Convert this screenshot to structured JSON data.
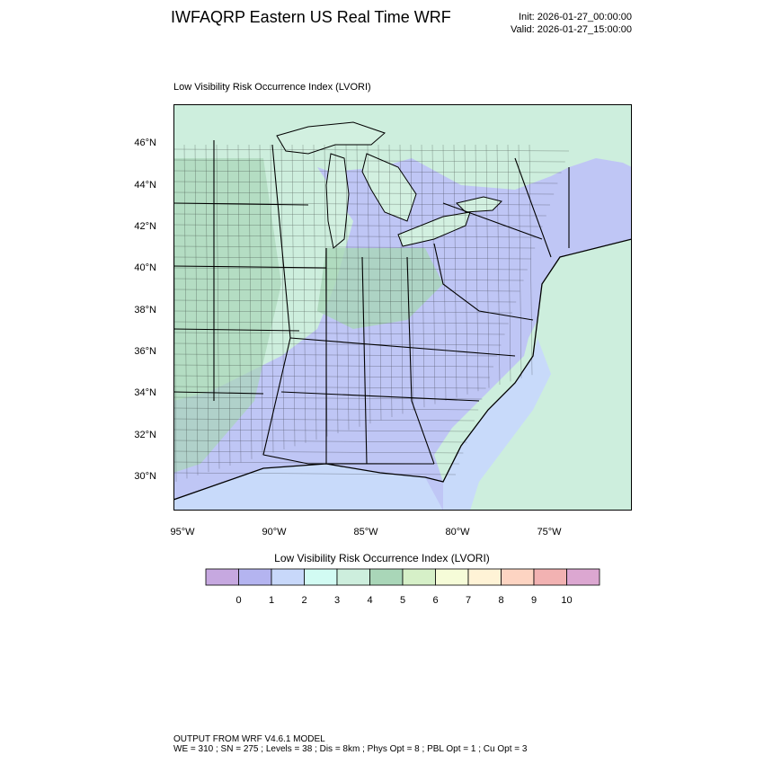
{
  "header": {
    "title": "IWFAQRP Eastern US Real Time WRF",
    "init": "Init: 2026-01-27_00:00:00",
    "valid": "Valid: 2026-01-27_15:00:00"
  },
  "map": {
    "subtitle": "Low Visibility Risk Occurrence Index   (LVORI)",
    "lat_labels": [
      "46°N",
      "44°N",
      "42°N",
      "40°N",
      "38°N",
      "36°N",
      "34°N",
      "32°N",
      "30°N"
    ],
    "lon_labels": [
      "95°W",
      "90°W",
      "85°W",
      "80°W",
      "75°W"
    ],
    "colors": {
      "water": "#c8dafa",
      "lake": "#d2f0e0",
      "land_low": "#bfc6f5",
      "land_mid": "#cdeedd",
      "land_high": "#a9d6b8",
      "border": "#000000"
    }
  },
  "legend": {
    "title": "Low Visibility Risk Occurrence Index  (LVORI)",
    "colors": [
      "#c6a8e0",
      "#b4b4f0",
      "#c8d8fa",
      "#d2fbf3",
      "#cdeedd",
      "#a9d6b8",
      "#d6f0c8",
      "#f6fcd8",
      "#fff3d6",
      "#fdd4c2",
      "#f2b2b2",
      "#dca7d1"
    ],
    "labels": [
      "0",
      "1",
      "2",
      "3",
      "4",
      "5",
      "6",
      "7",
      "8",
      "9",
      "10"
    ]
  },
  "footer": {
    "line1": "OUTPUT FROM WRF V4.6.1 MODEL",
    "line2": "WE = 310 ; SN = 275 ; Levels = 38 ; Dis = 8km ; Phys Opt = 8 ; PBL Opt = 1 ; Cu Opt = 3"
  }
}
